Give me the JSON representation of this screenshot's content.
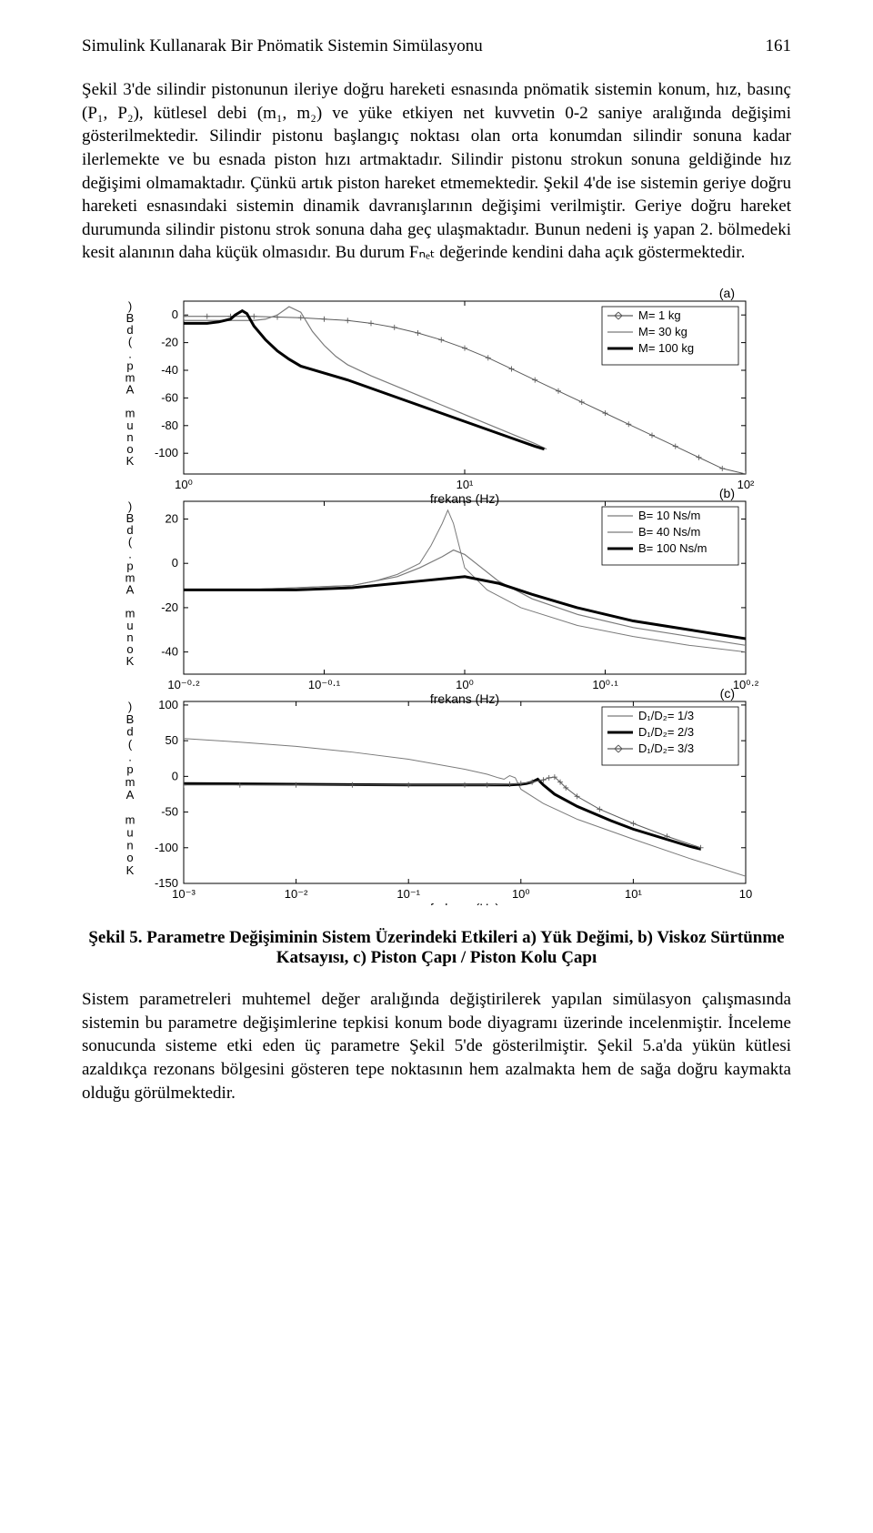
{
  "header": {
    "running_title": "Simulink Kullanarak Bir Pnömatik Sistemin Simülasyonu",
    "page_no": "161"
  },
  "paragraph1": "Şekil 3'de silindir pistonunun ileriye doğru hareketi esnasında pnömatik sistemin konum, hız, basınç (P₁, P₂), kütlesel debi (m₁, m₂) ve yüke etkiyen net kuvvetin 0-2 saniye aralığında değişimi gösterilmektedir. Silindir pistonu başlangıç noktası olan orta konumdan silindir sonuna kadar ilerlemekte ve bu esnada piston hızı artmaktadır. Silindir pistonu strokun sonuna geldiğinde hız değişimi olmamaktadır. Çünkü artık piston hareket etmemektedir. Şekil 4'de ise sistemin geriye doğru hareketi esnasındaki sistemin dinamik davranışlarının değişimi verilmiştir. Geriye doğru hareket durumunda silindir pistonu strok sonuna daha geç ulaşmaktadır. Bunun nedeni iş yapan 2. bölmedeki kesit alanının daha küçük olmasıdır. Bu durum Fₙₑₜ değerinde kendini daha açık göstermektedir.",
  "figure": {
    "x_label": "frekans (Hz)",
    "y_label_chars": [
      "K",
      "o",
      "n",
      "u",
      "m",
      " ",
      "A",
      "m",
      "p",
      ".",
      "(",
      "d",
      "B",
      ")"
    ],
    "colors": {
      "axis": "#000000",
      "grid": "#ffffff",
      "bg": "#ffffff",
      "thin": "#7a7a7a",
      "thick": "#000000",
      "marker": "#5a5a5a"
    },
    "panelA": {
      "label": "(a)",
      "legend": [
        "M= 1 kg",
        "M= 30 kg",
        "M= 100 kg"
      ],
      "yticks": [
        0,
        -20,
        -40,
        -60,
        -80,
        -100
      ],
      "xticks": [
        "10⁰",
        "10¹",
        "10²"
      ],
      "xlim_log": [
        -0.3,
        2.1
      ],
      "ylim": [
        -115,
        10
      ],
      "series": {
        "m1": {
          "style": "marker",
          "color": "#5a5a5a",
          "width": 1,
          "points": [
            [
              -0.3,
              -1
            ],
            [
              -0.2,
              -1
            ],
            [
              -0.1,
              -1
            ],
            [
              0,
              -1
            ],
            [
              0.1,
              -1.5
            ],
            [
              0.2,
              -2
            ],
            [
              0.3,
              -3
            ],
            [
              0.4,
              -4
            ],
            [
              0.5,
              -6
            ],
            [
              0.6,
              -9
            ],
            [
              0.7,
              -13
            ],
            [
              0.8,
              -18
            ],
            [
              0.9,
              -24
            ],
            [
              1.0,
              -31
            ],
            [
              1.1,
              -39
            ],
            [
              1.2,
              -47
            ],
            [
              1.3,
              -55
            ],
            [
              1.4,
              -63
            ],
            [
              1.5,
              -71
            ],
            [
              1.6,
              -79
            ],
            [
              1.7,
              -87
            ],
            [
              1.8,
              -95
            ],
            [
              1.9,
              -103
            ],
            [
              2.0,
              -111
            ],
            [
              2.1,
              -115
            ]
          ]
        },
        "m30": {
          "style": "line",
          "color": "#7a7a7a",
          "width": 1.2,
          "points": [
            [
              -0.3,
              -4
            ],
            [
              -0.2,
              -4
            ],
            [
              -0.1,
              -4
            ],
            [
              0,
              -4
            ],
            [
              0.05,
              -3
            ],
            [
              0.1,
              0
            ],
            [
              0.15,
              6
            ],
            [
              0.2,
              2
            ],
            [
              0.25,
              -12
            ],
            [
              0.3,
              -22
            ],
            [
              0.35,
              -30
            ],
            [
              0.4,
              -36
            ],
            [
              0.5,
              -44
            ],
            [
              0.6,
              -51
            ],
            [
              0.7,
              -58
            ],
            [
              0.8,
              -65
            ],
            [
              0.9,
              -72
            ],
            [
              1.0,
              -79
            ],
            [
              1.1,
              -86
            ],
            [
              1.2,
              -93
            ],
            [
              1.25,
              -97
            ]
          ]
        },
        "m100": {
          "style": "line",
          "color": "#000000",
          "width": 3,
          "points": [
            [
              -0.3,
              -6
            ],
            [
              -0.25,
              -6
            ],
            [
              -0.2,
              -6
            ],
            [
              -0.15,
              -5
            ],
            [
              -0.1,
              -3
            ],
            [
              -0.08,
              0
            ],
            [
              -0.05,
              3
            ],
            [
              -0.03,
              1
            ],
            [
              0,
              -8
            ],
            [
              0.05,
              -18
            ],
            [
              0.1,
              -26
            ],
            [
              0.15,
              -32
            ],
            [
              0.2,
              -37
            ],
            [
              0.3,
              -42
            ],
            [
              0.4,
              -47
            ],
            [
              0.5,
              -53
            ],
            [
              0.6,
              -59
            ],
            [
              0.7,
              -65
            ],
            [
              0.8,
              -71
            ],
            [
              0.9,
              -77
            ],
            [
              1.0,
              -83
            ],
            [
              1.1,
              -89
            ],
            [
              1.2,
              -95
            ],
            [
              1.24,
              -97
            ]
          ]
        }
      }
    },
    "panelB": {
      "label": "(b)",
      "legend": [
        "B= 10 Ns/m",
        "B= 40 Ns/m",
        "B= 100 Ns/m"
      ],
      "yticks": [
        20,
        0,
        -20,
        -40
      ],
      "xticks": [
        "10⁻⁰·²",
        "10⁻⁰·¹",
        "10⁰",
        "10⁰·¹",
        "10⁰·²"
      ],
      "xlim": [
        -0.25,
        0.25
      ],
      "ylim": [
        -50,
        28
      ],
      "series": {
        "b10": {
          "style": "line",
          "color": "#7a7a7a",
          "width": 1,
          "points": [
            [
              -0.25,
              -12
            ],
            [
              -0.2,
              -12
            ],
            [
              -0.15,
              -11
            ],
            [
              -0.1,
              -10
            ],
            [
              -0.08,
              -8
            ],
            [
              -0.06,
              -5
            ],
            [
              -0.04,
              0
            ],
            [
              -0.03,
              8
            ],
            [
              -0.02,
              18
            ],
            [
              -0.015,
              24
            ],
            [
              -0.01,
              18
            ],
            [
              -0.005,
              8
            ],
            [
              0.0,
              -2
            ],
            [
              0.02,
              -12
            ],
            [
              0.05,
              -20
            ],
            [
              0.1,
              -28
            ],
            [
              0.15,
              -33
            ],
            [
              0.2,
              -37
            ],
            [
              0.25,
              -40
            ]
          ]
        },
        "b40": {
          "style": "line",
          "color": "#7a7a7a",
          "width": 1.2,
          "points": [
            [
              -0.25,
              -12
            ],
            [
              -0.2,
              -12
            ],
            [
              -0.15,
              -11
            ],
            [
              -0.1,
              -10
            ],
            [
              -0.08,
              -8
            ],
            [
              -0.06,
              -6
            ],
            [
              -0.04,
              -2
            ],
            [
              -0.02,
              3
            ],
            [
              -0.01,
              6
            ],
            [
              0.0,
              4
            ],
            [
              0.01,
              0
            ],
            [
              0.03,
              -8
            ],
            [
              0.06,
              -16
            ],
            [
              0.1,
              -23
            ],
            [
              0.15,
              -29
            ],
            [
              0.2,
              -33
            ],
            [
              0.25,
              -37
            ]
          ]
        },
        "b100": {
          "style": "line",
          "color": "#000000",
          "width": 3,
          "points": [
            [
              -0.25,
              -12
            ],
            [
              -0.2,
              -12
            ],
            [
              -0.15,
              -12
            ],
            [
              -0.1,
              -11
            ],
            [
              -0.08,
              -10
            ],
            [
              -0.06,
              -9
            ],
            [
              -0.04,
              -8
            ],
            [
              -0.02,
              -7
            ],
            [
              0.0,
              -6
            ],
            [
              0.01,
              -7
            ],
            [
              0.03,
              -9
            ],
            [
              0.06,
              -14
            ],
            [
              0.1,
              -20
            ],
            [
              0.15,
              -26
            ],
            [
              0.2,
              -30
            ],
            [
              0.25,
              -34
            ]
          ]
        }
      }
    },
    "panelC": {
      "label": "(c)",
      "legend": [
        "D₁/D₂= 1/3",
        "D₁/D₂= 2/3",
        "D₁/D₂= 3/3"
      ],
      "yticks": [
        100,
        50,
        0,
        -50,
        -100,
        -150
      ],
      "xticks": [
        "10⁻³",
        "10⁻²",
        "10⁻¹",
        "10⁰",
        "10¹",
        "10"
      ],
      "xlim_log": [
        -3,
        2
      ],
      "ylim": [
        -150,
        105
      ],
      "series": {
        "d13": {
          "style": "line",
          "color": "#7a7a7a",
          "width": 1,
          "points": [
            [
              -3,
              53
            ],
            [
              -2.5,
              48
            ],
            [
              -2,
              42
            ],
            [
              -1.5,
              34
            ],
            [
              -1,
              24
            ],
            [
              -0.5,
              10
            ],
            [
              -0.3,
              3
            ],
            [
              -0.2,
              -2
            ],
            [
              -0.15,
              -4
            ],
            [
              -0.1,
              1
            ],
            [
              -0.05,
              -2
            ],
            [
              0,
              -18
            ],
            [
              0.2,
              -38
            ],
            [
              0.5,
              -60
            ],
            [
              1,
              -88
            ],
            [
              1.5,
              -115
            ],
            [
              2,
              -140
            ]
          ]
        },
        "d23": {
          "style": "line",
          "color": "#000000",
          "width": 3,
          "points": [
            [
              -3,
              -10
            ],
            [
              -1,
              -12
            ],
            [
              -0.5,
              -12
            ],
            [
              -0.2,
              -12
            ],
            [
              -0.1,
              -12
            ],
            [
              0,
              -11
            ],
            [
              0.05,
              -10
            ],
            [
              0.1,
              -8
            ],
            [
              0.15,
              -4
            ],
            [
              0.2,
              -12
            ],
            [
              0.3,
              -25
            ],
            [
              0.5,
              -42
            ],
            [
              0.8,
              -62
            ],
            [
              1,
              -74
            ],
            [
              1.5,
              -98
            ],
            [
              1.6,
              -102
            ]
          ]
        },
        "d33": {
          "style": "marker",
          "color": "#5a5a5a",
          "width": 1,
          "points": [
            [
              -3,
              -12
            ],
            [
              -2.5,
              -12
            ],
            [
              -2,
              -12
            ],
            [
              -1.5,
              -12
            ],
            [
              -1,
              -12
            ],
            [
              -0.5,
              -12
            ],
            [
              -0.3,
              -12
            ],
            [
              -0.1,
              -11
            ],
            [
              0,
              -10
            ],
            [
              0.1,
              -8
            ],
            [
              0.2,
              -5
            ],
            [
              0.25,
              -2
            ],
            [
              0.3,
              -1
            ],
            [
              0.35,
              -8
            ],
            [
              0.4,
              -16
            ],
            [
              0.5,
              -28
            ],
            [
              0.7,
              -46
            ],
            [
              1,
              -66
            ],
            [
              1.3,
              -84
            ],
            [
              1.6,
              -100
            ]
          ]
        }
      }
    }
  },
  "caption": "Şekil 5. Parametre Değişiminin Sistem Üzerindeki Etkileri a) Yük Değimi, b) Viskoz Sürtünme Katsayısı, c) Piston Çapı / Piston Kolu Çapı",
  "paragraph2": "Sistem parametreleri muhtemel değer aralığında değiştirilerek yapılan simülasyon çalışmasında sistemin bu parametre değişimlerine tepkisi konum bode diyagramı üzerinde incelenmiştir. İnceleme sonucunda sisteme etki eden üç parametre Şekil 5'de gösterilmiştir. Şekil 5.a'da yükün kütlesi azaldıkça rezonans bölgesini gösteren tepe noktasının hem azalmakta hem de sağa doğru kaymakta olduğu görülmektedir."
}
